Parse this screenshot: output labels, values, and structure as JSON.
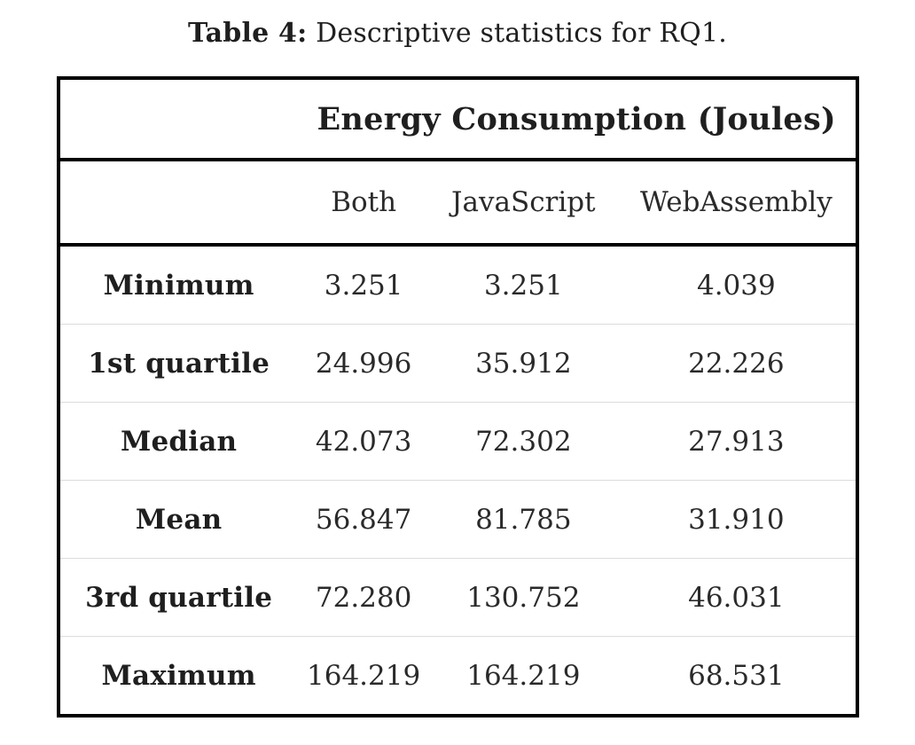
{
  "caption": {
    "label": "Table 4:",
    "text": "Descriptive statistics for RQ1."
  },
  "table": {
    "group_header": "Energy Consumption (Joules)",
    "columns": [
      "Both",
      "JavaScript",
      "WebAssembly"
    ],
    "rows": [
      {
        "label": "Minimum",
        "values": [
          "3.251",
          "3.251",
          "4.039"
        ]
      },
      {
        "label": "1st quartile",
        "values": [
          "24.996",
          "35.912",
          "22.226"
        ]
      },
      {
        "label": "Median",
        "values": [
          "42.073",
          "72.302",
          "27.913"
        ]
      },
      {
        "label": "Mean",
        "values": [
          "56.847",
          "81.785",
          "31.910"
        ]
      },
      {
        "label": "3rd quartile",
        "values": [
          "72.280",
          "130.752",
          "46.031"
        ]
      },
      {
        "label": "Maximum",
        "values": [
          "164.219",
          "164.219",
          "68.531"
        ]
      }
    ]
  },
  "colors": {
    "outer_border": "#000000",
    "header_rule": "#000000",
    "row_divider": "#dcdcdc",
    "text": "#1f1f1f",
    "background": "#ffffff"
  }
}
